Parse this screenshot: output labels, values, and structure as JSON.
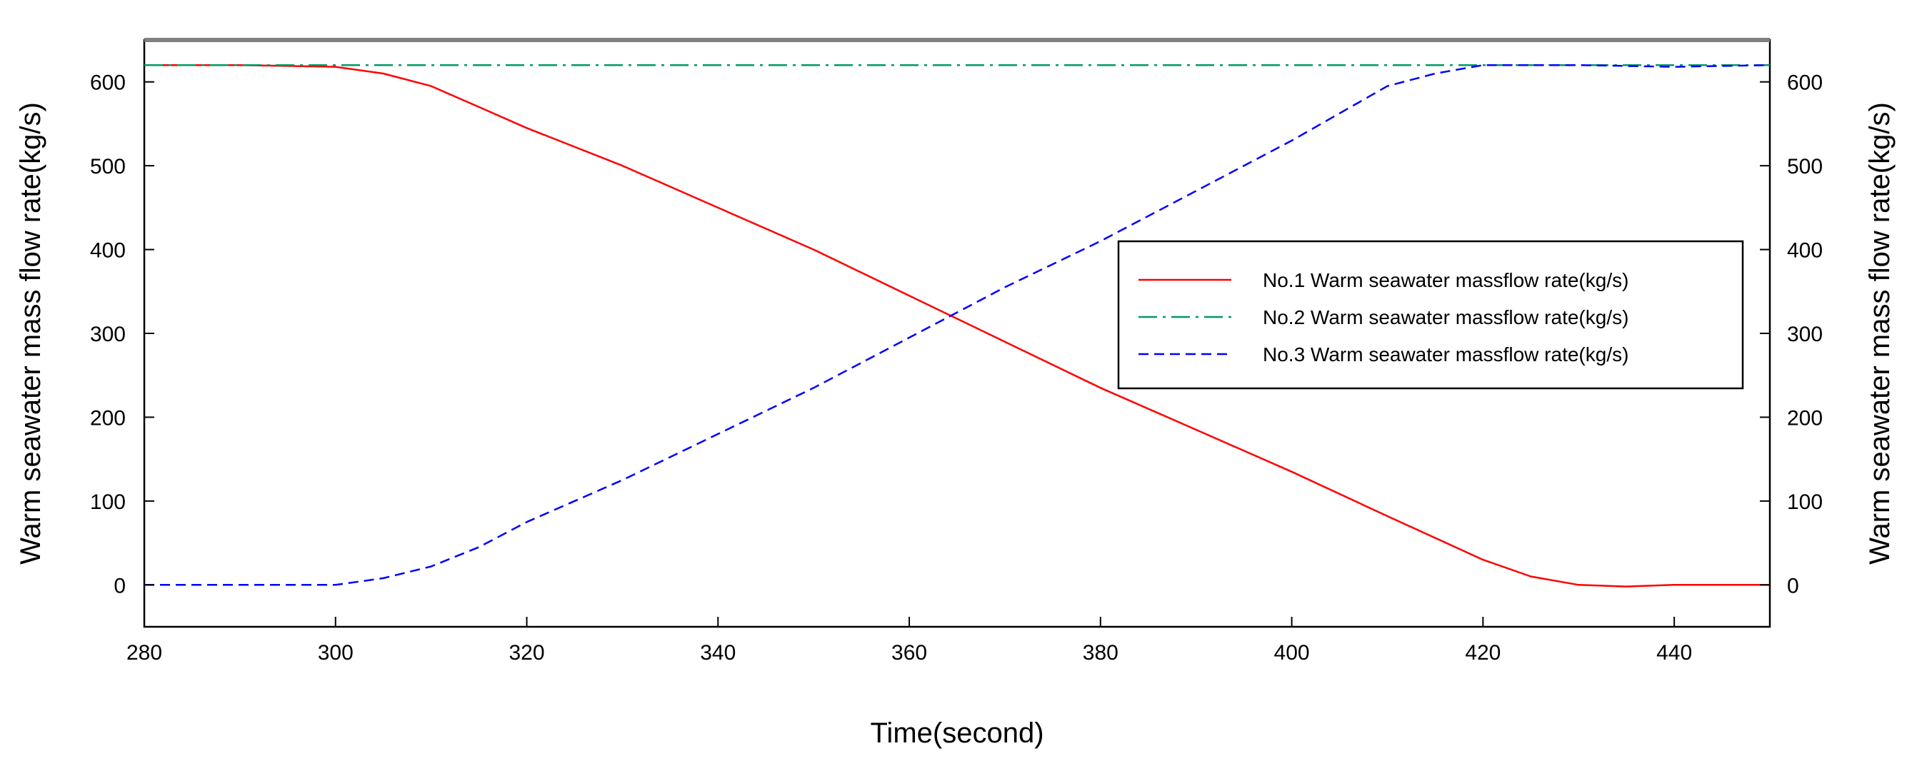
{
  "chart_data": {
    "type": "line",
    "title": "",
    "xlabel": "Time(second)",
    "ylabel": "Warm seawater mass flow rate(kg/s)",
    "ylabel_right": "Warm seawater mass flow rate(kg/s)",
    "xlim": [
      280,
      450
    ],
    "ylim": [
      -50,
      650
    ],
    "x_ticks": [
      280,
      300,
      320,
      340,
      360,
      380,
      400,
      420,
      440
    ],
    "y_ticks": [
      0,
      100,
      200,
      300,
      400,
      500,
      600
    ],
    "grid": false,
    "legend_position": "center-right",
    "series": [
      {
        "name": "No.1 Warm seawater massflow rate(kg/s)",
        "color": "#ff0000",
        "style": "solid",
        "x": [
          280,
          290,
          300,
          305,
          310,
          315,
          320,
          330,
          340,
          350,
          360,
          370,
          380,
          390,
          400,
          410,
          420,
          425,
          430,
          435,
          440,
          450
        ],
        "y": [
          620,
          620,
          618,
          610,
          595,
          570,
          545,
          500,
          450,
          400,
          345,
          290,
          235,
          185,
          135,
          82,
          30,
          10,
          0,
          -2,
          0,
          0
        ]
      },
      {
        "name": "No.2 Warm seawater massflow rate(kg/s)",
        "color": "#009966",
        "style": "dashdot",
        "x": [
          280,
          450
        ],
        "y": [
          620,
          620
        ]
      },
      {
        "name": "No.3 Warm seawater massflow rate(kg/s)",
        "color": "#0000ff",
        "style": "dashed",
        "x": [
          280,
          290,
          300,
          305,
          310,
          315,
          320,
          330,
          340,
          350,
          360,
          370,
          380,
          390,
          400,
          410,
          415,
          420,
          430,
          440,
          450
        ],
        "y": [
          0,
          0,
          0,
          8,
          22,
          45,
          75,
          125,
          180,
          235,
          295,
          355,
          410,
          470,
          530,
          595,
          610,
          620,
          620,
          618,
          620
        ]
      }
    ]
  }
}
